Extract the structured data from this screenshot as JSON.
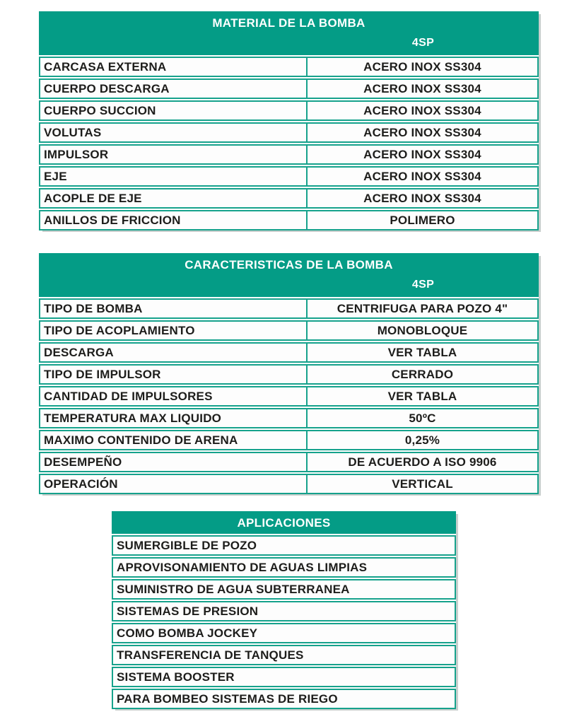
{
  "colors": {
    "teal": "#049C86",
    "border_teal": "#16A28C",
    "header_text": "#FFFFFF",
    "row_text": "#1D1D1B",
    "cell_bg": "#FDFDFD",
    "page_bg": "#FFFFFF",
    "shadow": "#C9CFCD"
  },
  "tables": {
    "material": {
      "title": "MATERIAL DE LA BOMBA",
      "column_header": "4SP",
      "rows": [
        {
          "label": "CARCASA EXTERNA",
          "value": "ACERO INOX SS304"
        },
        {
          "label": "CUERPO DESCARGA",
          "value": "ACERO INOX SS304"
        },
        {
          "label": "CUERPO SUCCION",
          "value": "ACERO INOX SS304"
        },
        {
          "label": "VOLUTAS",
          "value": "ACERO INOX SS304"
        },
        {
          "label": "IMPULSOR",
          "value": "ACERO INOX SS304"
        },
        {
          "label": "EJE",
          "value": "ACERO INOX SS304"
        },
        {
          "label": "ACOPLE DE EJE",
          "value": "ACERO INOX SS304"
        },
        {
          "label": "ANILLOS DE FRICCION",
          "value": "POLIMERO"
        }
      ]
    },
    "caracteristicas": {
      "title": "CARACTERISTICAS DE LA BOMBA",
      "column_header": "4SP",
      "rows": [
        {
          "label": "TIPO DE BOMBA",
          "value": "CENTRIFUGA PARA POZO 4\""
        },
        {
          "label": "TIPO DE ACOPLAMIENTO",
          "value": "MONOBLOQUE"
        },
        {
          "label": "DESCARGA",
          "value": "VER TABLA"
        },
        {
          "label": "TIPO DE IMPULSOR",
          "value": "CERRADO"
        },
        {
          "label": "CANTIDAD DE IMPULSORES",
          "value": "VER TABLA"
        },
        {
          "label": "TEMPERATURA MAX LIQUIDO",
          "value": "50ºC"
        },
        {
          "label": "MAXIMO CONTENIDO DE ARENA",
          "value": "0,25%"
        },
        {
          "label": "DESEMPEÑO",
          "value": "DE ACUERDO A ISO 9906"
        },
        {
          "label": "OPERACIÓN",
          "value": "VERTICAL"
        }
      ]
    },
    "aplicaciones": {
      "title": "APLICACIONES",
      "rows": [
        "SUMERGIBLE DE POZO",
        "APROVISONAMIENTO DE AGUAS LIMPIAS",
        "SUMINISTRO DE AGUA SUBTERRANEA",
        "SISTEMAS DE PRESION",
        "COMO BOMBA JOCKEY",
        "TRANSFERENCIA DE TANQUES",
        "SISTEMA BOOSTER",
        "PARA BOMBEO SISTEMAS DE RIEGO"
      ]
    }
  }
}
